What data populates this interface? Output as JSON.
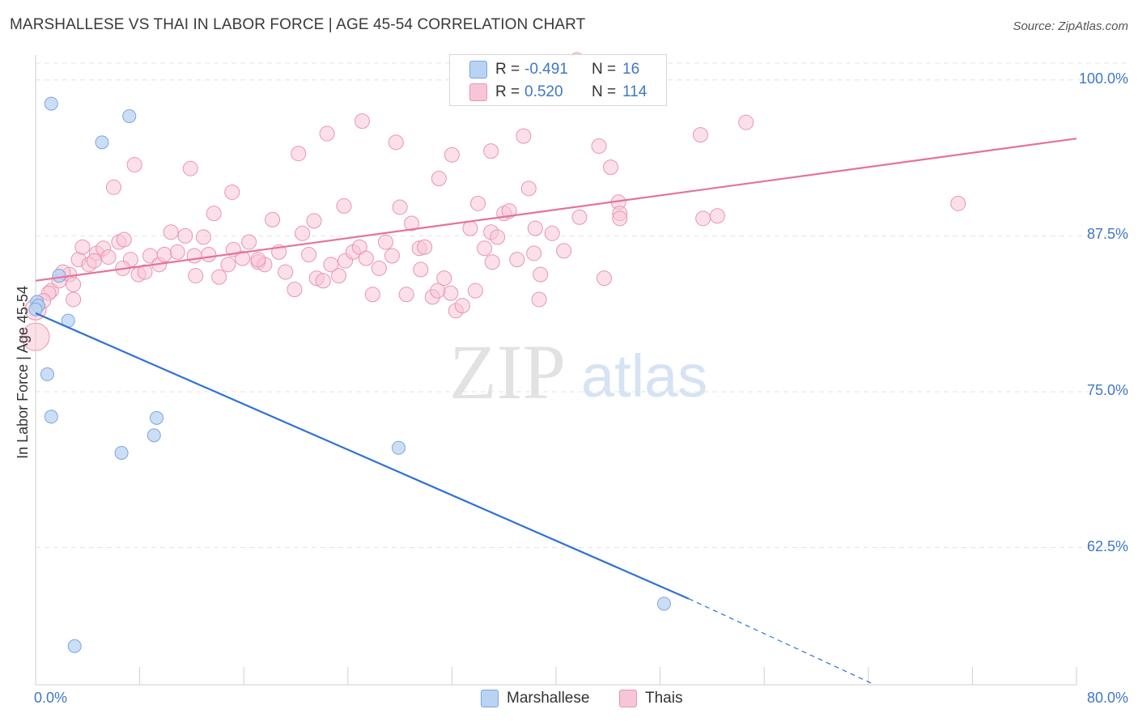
{
  "title": "MARSHALLESE VS THAI IN LABOR FORCE | AGE 45-54 CORRELATION CHART",
  "source": "Source: ZipAtlas.com",
  "watermark": {
    "zip": "ZIP",
    "atlas": "atlas"
  },
  "legend": {
    "r_label": "R =",
    "n_label": "N =",
    "rows": [
      {
        "series": "Marshallese",
        "r": "-0.491",
        "n": "16"
      },
      {
        "series": "Thais",
        "r": "0.520",
        "n": "114"
      }
    ]
  },
  "colors": {
    "marshallese_fill": "#b9d3f3",
    "marshallese_stroke": "#7aa6e0",
    "marshallese_line": "#2f72d4",
    "thai_fill": "#f7c6d6",
    "thai_stroke": "#e994b2",
    "thai_line": "#e4739b",
    "tick_label": "#3f78c4",
    "grid": "#e4e4e4"
  },
  "chart_data": {
    "type": "scatter",
    "xlabel": "",
    "ylabel": "In Labor Force | Age 45-54",
    "xlim": [
      0,
      80
    ],
    "ylim": [
      51.5,
      102
    ],
    "x_tick_labels": [
      "0.0%",
      "80.0%"
    ],
    "y_ticks": [
      {
        "value": 100.0,
        "label": "100.0%"
      },
      {
        "value": 87.5,
        "label": "87.5%"
      },
      {
        "value": 75.0,
        "label": "75.0%"
      },
      {
        "value": 62.5,
        "label": "62.5%"
      }
    ],
    "grid": "horizontal dashed",
    "series": [
      {
        "name": "Marshallese",
        "points": [
          [
            0.1,
            82.2
          ],
          [
            0.2,
            81.9
          ],
          [
            1.2,
            98.1
          ],
          [
            7.2,
            97.1
          ],
          [
            5.1,
            95.0
          ],
          [
            1.8,
            84.3
          ],
          [
            2.5,
            80.7
          ],
          [
            0.9,
            76.4
          ],
          [
            1.2,
            73.0
          ],
          [
            9.3,
            72.9
          ],
          [
            9.1,
            71.5
          ],
          [
            6.6,
            70.1
          ],
          [
            27.9,
            70.5
          ],
          [
            48.3,
            58.0
          ],
          [
            3.0,
            54.6
          ],
          [
            0.0,
            81.6
          ]
        ],
        "trend": {
          "x0": 0.0,
          "y0": 81.3,
          "x1": 50.2,
          "y1": 58.4,
          "dashed_to_x": 64.5,
          "dashed_to_y": 51.5
        }
      },
      {
        "name": "Thais",
        "points": [
          [
            0.0,
            79.4
          ],
          [
            0.0,
            81.6
          ],
          [
            1.2,
            83.1
          ],
          [
            1.8,
            83.9
          ],
          [
            1.0,
            82.9
          ],
          [
            2.9,
            82.4
          ],
          [
            2.6,
            84.4
          ],
          [
            3.3,
            85.6
          ],
          [
            3.6,
            86.6
          ],
          [
            4.1,
            85.2
          ],
          [
            4.7,
            86.1
          ],
          [
            5.2,
            86.5
          ],
          [
            5.6,
            85.8
          ],
          [
            6.4,
            87.0
          ],
          [
            6.8,
            87.2
          ],
          [
            7.3,
            85.6
          ],
          [
            7.9,
            84.4
          ],
          [
            8.4,
            84.6
          ],
          [
            8.8,
            85.9
          ],
          [
            9.5,
            85.2
          ],
          [
            9.9,
            86.0
          ],
          [
            10.4,
            87.8
          ],
          [
            10.9,
            86.2
          ],
          [
            11.5,
            87.5
          ],
          [
            12.2,
            85.9
          ],
          [
            12.9,
            87.4
          ],
          [
            13.3,
            86.0
          ],
          [
            14.1,
            84.2
          ],
          [
            14.8,
            85.2
          ],
          [
            15.2,
            86.4
          ],
          [
            15.9,
            85.7
          ],
          [
            16.4,
            87.0
          ],
          [
            17.1,
            85.4
          ],
          [
            17.6,
            85.2
          ],
          [
            18.2,
            88.8
          ],
          [
            18.7,
            86.2
          ],
          [
            19.2,
            84.6
          ],
          [
            19.9,
            83.2
          ],
          [
            20.5,
            87.7
          ],
          [
            21.0,
            86.0
          ],
          [
            21.6,
            84.1
          ],
          [
            22.1,
            83.9
          ],
          [
            22.7,
            85.2
          ],
          [
            23.3,
            84.3
          ],
          [
            23.8,
            85.5
          ],
          [
            24.4,
            86.2
          ],
          [
            24.9,
            86.6
          ],
          [
            25.4,
            85.7
          ],
          [
            25.9,
            82.8
          ],
          [
            26.4,
            84.9
          ],
          [
            26.9,
            87.0
          ],
          [
            27.4,
            85.9
          ],
          [
            28.0,
            89.8
          ],
          [
            28.5,
            82.8
          ],
          [
            28.9,
            88.5
          ],
          [
            29.5,
            86.5
          ],
          [
            29.9,
            86.6
          ],
          [
            30.5,
            82.6
          ],
          [
            31.0,
            92.1
          ],
          [
            31.4,
            84.1
          ],
          [
            31.9,
            82.9
          ],
          [
            32.3,
            81.5
          ],
          [
            32.8,
            81.9
          ],
          [
            33.4,
            88.1
          ],
          [
            34.0,
            90.1
          ],
          [
            34.5,
            86.5
          ],
          [
            35.0,
            87.8
          ],
          [
            35.5,
            87.4
          ],
          [
            36.0,
            89.3
          ],
          [
            36.4,
            89.5
          ],
          [
            37.0,
            85.6
          ],
          [
            37.5,
            95.5
          ],
          [
            37.9,
            91.3
          ],
          [
            38.3,
            86.1
          ],
          [
            38.8,
            84.4
          ],
          [
            38.7,
            82.4
          ],
          [
            38.4,
            88.1
          ],
          [
            39.7,
            87.7
          ],
          [
            43.7,
            84.1
          ],
          [
            43.3,
            94.7
          ],
          [
            44.2,
            93.0
          ],
          [
            44.8,
            90.2
          ],
          [
            44.9,
            89.3
          ],
          [
            44.9,
            88.9
          ],
          [
            51.1,
            95.6
          ],
          [
            51.3,
            88.9
          ],
          [
            54.6,
            96.6
          ],
          [
            52.4,
            89.1
          ],
          [
            22.4,
            95.7
          ],
          [
            25.1,
            96.7
          ],
          [
            27.7,
            95.0
          ],
          [
            41.6,
            101.6
          ],
          [
            35.0,
            94.3
          ],
          [
            20.2,
            94.1
          ],
          [
            32.0,
            94.0
          ],
          [
            7.6,
            93.2
          ],
          [
            15.1,
            91.0
          ],
          [
            6.0,
            91.4
          ],
          [
            11.9,
            92.9
          ],
          [
            70.9,
            90.1
          ],
          [
            13.7,
            89.3
          ],
          [
            4.5,
            85.5
          ],
          [
            2.1,
            84.6
          ],
          [
            2.9,
            83.6
          ],
          [
            6.7,
            84.9
          ],
          [
            12.3,
            84.3
          ],
          [
            17.1,
            85.6
          ],
          [
            21.4,
            88.7
          ],
          [
            33.8,
            83.1
          ],
          [
            40.6,
            86.3
          ],
          [
            30.9,
            83.1
          ],
          [
            29.6,
            84.8
          ],
          [
            35.1,
            85.4
          ],
          [
            23.7,
            89.9
          ],
          [
            41.8,
            89.0
          ],
          [
            0.6,
            82.3
          ]
        ],
        "trend": {
          "x0": 0.0,
          "y0": 83.9,
          "x1": 80.0,
          "y1": 95.3
        }
      }
    ]
  }
}
